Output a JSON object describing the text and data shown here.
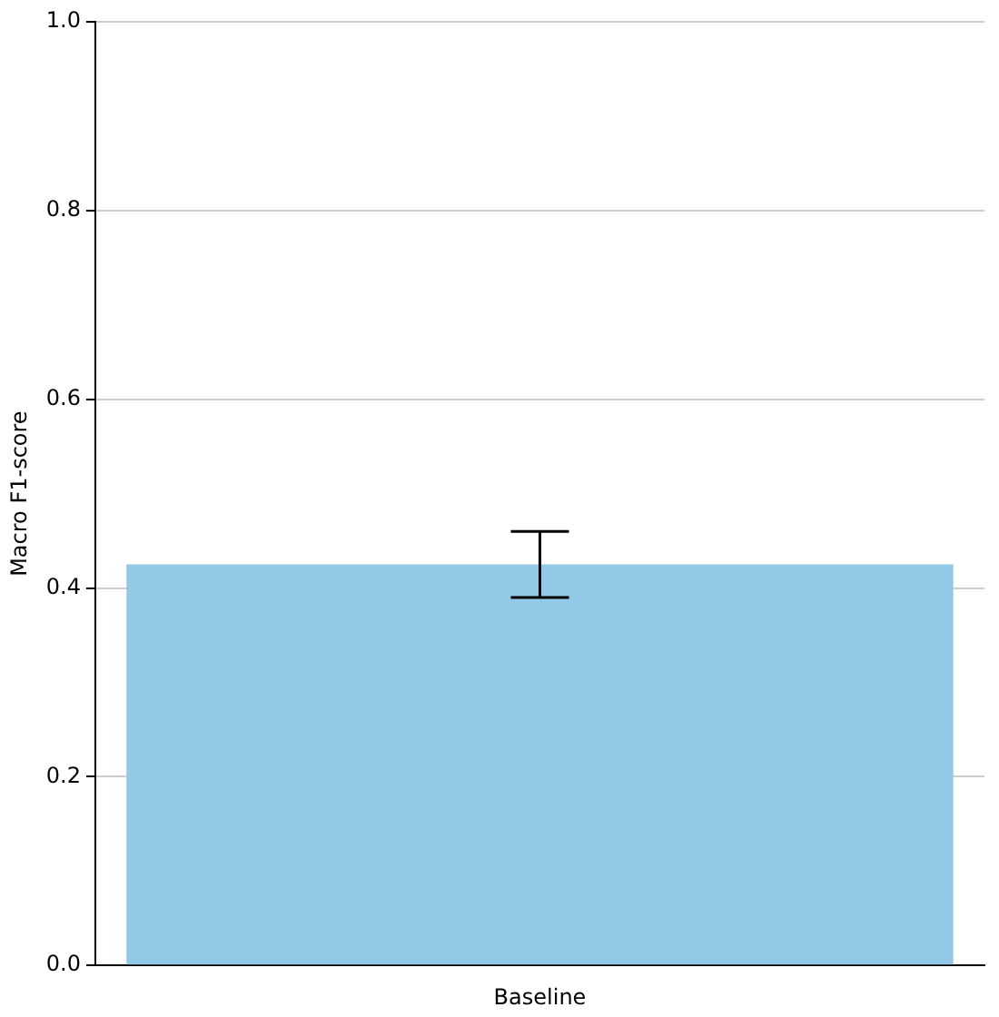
{
  "chart_data": {
    "type": "bar",
    "ylabel": "Macro F1-score",
    "categories": [
      "Baseline"
    ],
    "values": [
      0.425
    ],
    "errors": [
      0.035
    ],
    "color": "#93c9e7",
    "ylim": [
      0,
      1
    ],
    "yticks": [
      {
        "value": 0,
        "label": "0.0"
      },
      {
        "value": 0.2,
        "label": "0.2"
      },
      {
        "value": 0.4,
        "label": "0.4"
      },
      {
        "value": 0.6,
        "label": "0.6"
      },
      {
        "value": 0.8,
        "label": "0.8"
      },
      {
        "value": 1,
        "label": "1.0"
      }
    ],
    "grid": "y"
  }
}
